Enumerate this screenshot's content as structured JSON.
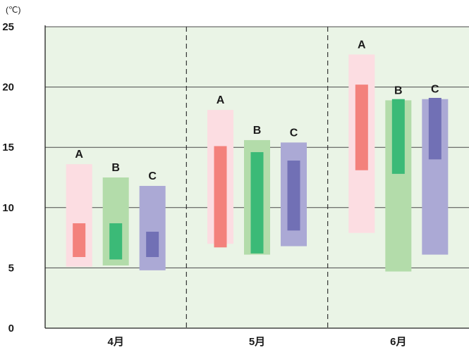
{
  "chart_data": {
    "type": "bar",
    "y_unit": "(℃)",
    "ylim": [
      0,
      25
    ],
    "yticks": [
      0,
      5,
      10,
      15,
      20,
      25
    ],
    "grid": true,
    "categories": [
      "4月",
      "5月",
      "6月"
    ],
    "series": [
      {
        "name": "A",
        "outer_color": "#fcdde2",
        "inner_color": "#f3817c",
        "ranges": [
          {
            "outer": [
              5.1,
              13.6
            ],
            "inner": [
              5.9,
              8.7
            ]
          },
          {
            "outer": [
              7.0,
              18.1
            ],
            "inner": [
              6.7,
              15.1
            ]
          },
          {
            "outer": [
              7.9,
              22.7
            ],
            "inner": [
              13.1,
              20.2
            ]
          }
        ]
      },
      {
        "name": "B",
        "outer_color": "#b3dcaa",
        "inner_color": "#3bba77",
        "ranges": [
          {
            "outer": [
              5.2,
              12.5
            ],
            "inner": [
              5.7,
              8.7
            ]
          },
          {
            "outer": [
              6.1,
              15.6
            ],
            "inner": [
              6.2,
              14.6
            ]
          },
          {
            "outer": [
              4.7,
              18.9
            ],
            "inner": [
              12.8,
              19.0
            ]
          }
        ]
      },
      {
        "name": "C",
        "outer_color": "#aba9d5",
        "inner_color": "#7170b5",
        "ranges": [
          {
            "outer": [
              4.8,
              11.8
            ],
            "inner": [
              5.9,
              8.0
            ]
          },
          {
            "outer": [
              6.8,
              15.4
            ],
            "inner": [
              8.1,
              13.9
            ]
          },
          {
            "outer": [
              6.1,
              19.0
            ],
            "inner": [
              14.0,
              19.1
            ]
          }
        ]
      }
    ],
    "colors": {
      "plot_background": "#eaf4e6",
      "gridline": "#4a4a4a",
      "separator": "#333333",
      "axis": "#222222"
    }
  }
}
